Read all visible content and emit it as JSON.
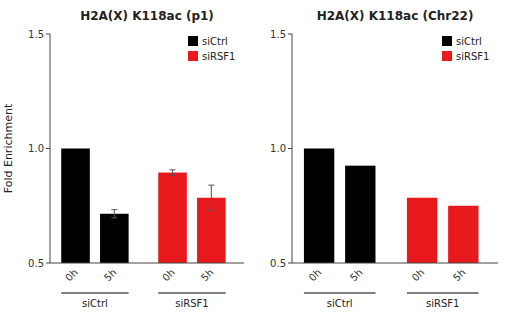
{
  "chart_data": [
    {
      "type": "bar",
      "title": "H2A(X) K118ac (p1)",
      "categories": [
        "0h",
        "5h"
      ],
      "series": [
        {
          "name": "siCtrl",
          "color": "#000000",
          "values": [
            1.0,
            0.715
          ],
          "errors": [
            0.0,
            0.018
          ]
        },
        {
          "name": "siRSF1",
          "color": "#e8191c",
          "values": [
            0.895,
            0.785
          ],
          "errors": [
            0.012,
            0.055
          ]
        }
      ],
      "ylim": [
        0.5,
        1.5
      ],
      "yticks": [
        0.5,
        {
          "value": 1.0,
          "label": "1.0"
        },
        1.5
      ],
      "ylabel": "Fold Enrichment",
      "legend": "upper right",
      "grid": false
    },
    {
      "type": "bar",
      "title": "H2A(X) K118ac (Chr22)",
      "categories": [
        "0h",
        "5h"
      ],
      "series": [
        {
          "name": "siCtrl",
          "color": "#000000",
          "values": [
            1.0,
            0.925
          ]
        },
        {
          "name": "siRSF1",
          "color": "#e8191c",
          "values": [
            0.785,
            0.75
          ]
        }
      ],
      "ylim": [
        0.5,
        1.5
      ],
      "yticks": [
        0.5,
        {
          "value": 1.0,
          "label": "1.0"
        },
        1.5
      ],
      "legend": "upper right",
      "grid": false
    }
  ]
}
